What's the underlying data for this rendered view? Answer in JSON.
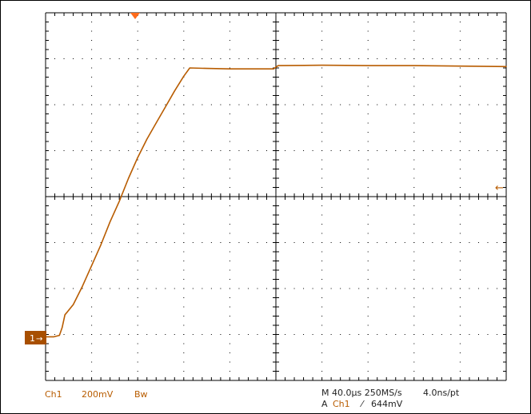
{
  "status": {
    "channel": "Ch1",
    "volts_per_div": "200mV",
    "bandwidth_limit": "Bw",
    "timebase": "M 40.0µs 250MS/s",
    "sample_interval": "4.0ns/pt",
    "trigger_prefix": "A",
    "trigger_source": "Ch1",
    "trigger_slope_symbol": "⁄",
    "trigger_level": "644mV"
  },
  "channel_marker": {
    "label": "1",
    "arrow": "→"
  },
  "trigger_level_marker": "←",
  "colors": {
    "trace": "#b85c00",
    "marker_bg": "#a84f00",
    "grid": "#000000",
    "label_text": "#b85c00",
    "status_text": "#222222",
    "trigger_position": "#ff6a1a"
  },
  "chart_data": {
    "type": "line",
    "grid": true,
    "divisions": {
      "x": 10,
      "y": 8
    },
    "x_unit_per_div": "40.0µs",
    "y_unit_per_div": "200mV",
    "ylim_div": [
      -4,
      4
    ],
    "xlim_div": [
      -5,
      5
    ],
    "series": [
      {
        "points_div": [
          [
            -5.0,
            -3.05
          ],
          [
            -4.82,
            -3.05
          ],
          [
            -4.7,
            -3.02
          ],
          [
            -4.64,
            -2.85
          ],
          [
            -4.58,
            -2.57
          ],
          [
            -4.52,
            -2.5
          ],
          [
            -4.4,
            -2.35
          ],
          [
            -4.2,
            -1.95
          ],
          [
            -4.0,
            -1.5
          ],
          [
            -3.8,
            -1.05
          ],
          [
            -3.6,
            -0.55
          ],
          [
            -3.4,
            -0.1
          ],
          [
            -3.2,
            0.4
          ],
          [
            -3.0,
            0.85
          ],
          [
            -2.8,
            1.25
          ],
          [
            -2.6,
            1.6
          ],
          [
            -2.4,
            1.95
          ],
          [
            -2.2,
            2.3
          ],
          [
            -2.0,
            2.62
          ],
          [
            -1.87,
            2.8
          ],
          [
            -1.5,
            2.79
          ],
          [
            -1.0,
            2.78
          ],
          [
            -0.05,
            2.78
          ],
          [
            0.0,
            2.82
          ],
          [
            0.05,
            2.85
          ],
          [
            1.0,
            2.86
          ],
          [
            2.0,
            2.85
          ],
          [
            3.0,
            2.85
          ],
          [
            4.0,
            2.84
          ],
          [
            5.0,
            2.83
          ]
        ]
      }
    ]
  }
}
